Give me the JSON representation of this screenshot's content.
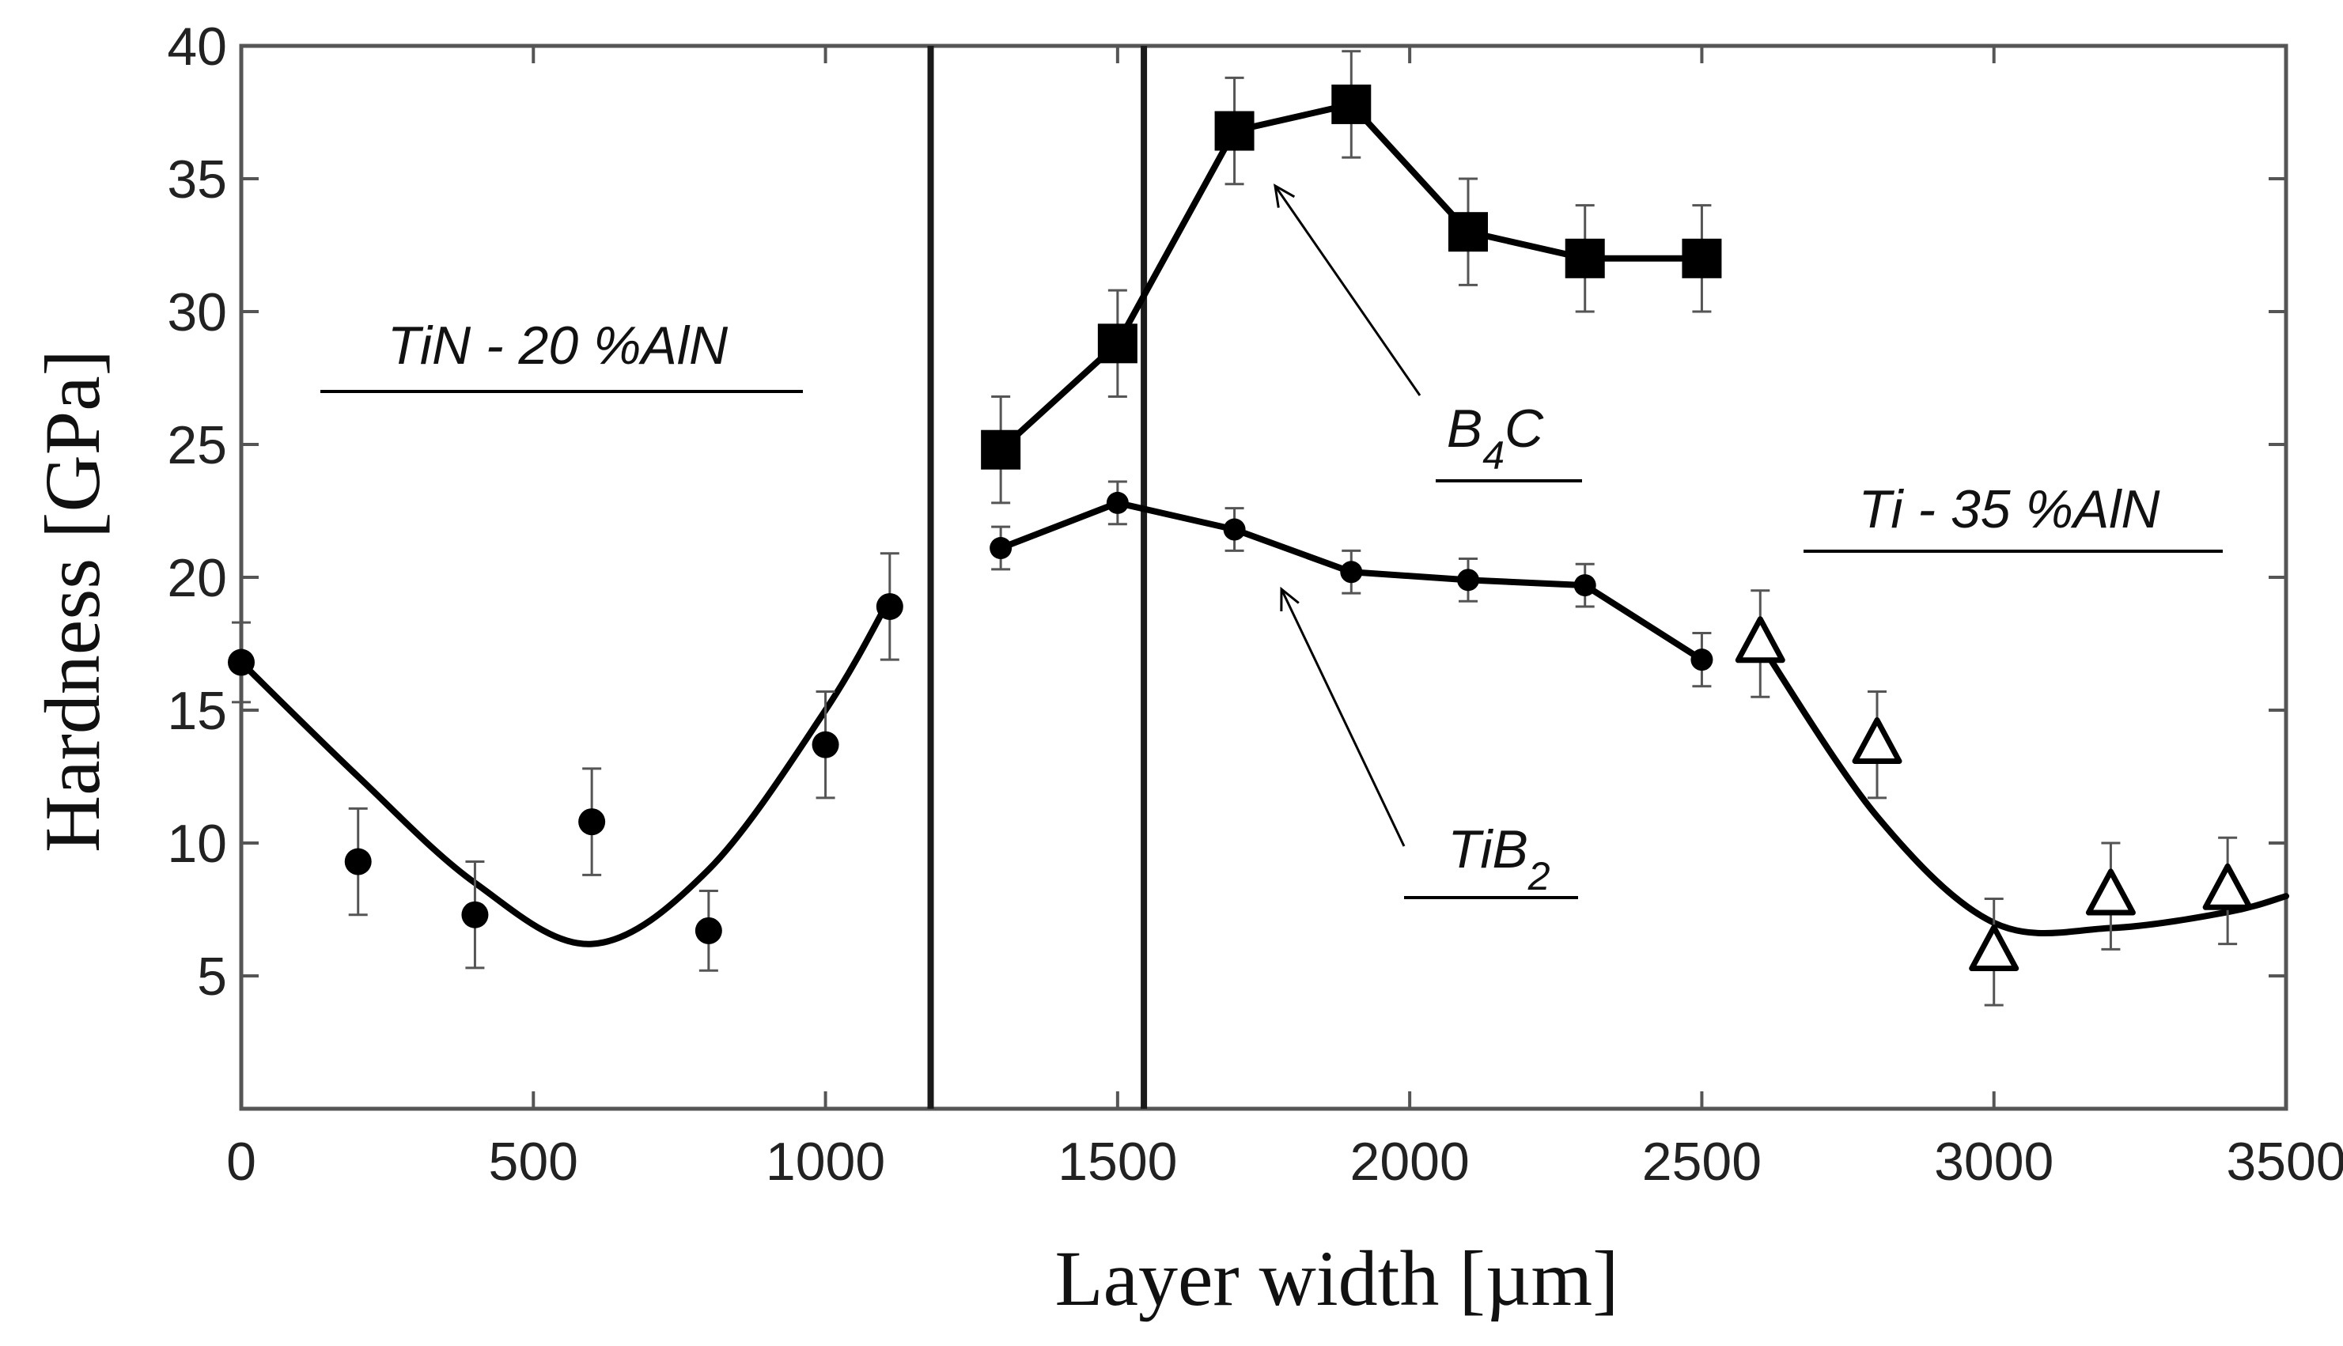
{
  "chart_data": {
    "type": "line",
    "xlabel": "Layer width [µm]",
    "ylabel": "Hardness [GPa]",
    "xlim": [
      0,
      3500
    ],
    "ylim": [
      0,
      40
    ],
    "x_ticks": [
      "0",
      "500",
      "1000",
      "1500",
      "2000",
      "2500",
      "3000",
      "3500"
    ],
    "x_tick_values": [
      0,
      500,
      1000,
      1500,
      2000,
      2500,
      3000,
      3500
    ],
    "y_ticks": [
      "5",
      "10",
      "15",
      "20",
      "25",
      "30",
      "35",
      "40"
    ],
    "y_tick_values": [
      5,
      10,
      15,
      20,
      25,
      30,
      35,
      40
    ],
    "dividers": [
      1180,
      1545
    ],
    "series": [
      {
        "name": "TiN - 20 %AlN",
        "marker": "circle",
        "fit": "smooth",
        "x": [
          0,
          200,
          400,
          600,
          800,
          1000,
          1110
        ],
        "y": [
          16.8,
          9.3,
          7.3,
          10.8,
          6.7,
          13.7,
          18.9
        ],
        "err": [
          1.5,
          2.0,
          2.0,
          2.0,
          1.5,
          2.0,
          2.0
        ]
      },
      {
        "name": "B4C",
        "label_main": "B",
        "label_sub": "4",
        "label_tail": "C",
        "marker": "square",
        "fit": "line",
        "x": [
          1300,
          1500,
          1700,
          1900,
          2100,
          2300,
          2500
        ],
        "y": [
          24.8,
          28.8,
          36.8,
          37.8,
          33.0,
          32.0,
          32.0
        ],
        "err": [
          2.0,
          2.0,
          2.0,
          2.0,
          2.0,
          2.0,
          2.0
        ]
      },
      {
        "name": "TiB2",
        "label_main": "TiB",
        "label_sub": "2",
        "label_tail": "",
        "marker": "dot",
        "fit": "line",
        "x": [
          1300,
          1500,
          1700,
          1900,
          2100,
          2300,
          2500
        ],
        "y": [
          21.1,
          22.8,
          21.8,
          20.2,
          19.9,
          19.7,
          16.9
        ],
        "err": [
          0.8,
          0.8,
          0.8,
          0.8,
          0.8,
          0.8,
          1.0
        ]
      },
      {
        "name": "Ti - 35 %AlN",
        "marker": "triangle",
        "fit": "smooth",
        "x": [
          2600,
          2800,
          3000,
          3200,
          3400
        ],
        "y": [
          17.5,
          13.7,
          5.9,
          8.0,
          8.2
        ],
        "err": [
          2.0,
          2.0,
          2.0,
          2.0,
          2.0
        ]
      }
    ],
    "fits": {
      "TiN - 20 %AlN": {
        "x": [
          0,
          200,
          400,
          600,
          800,
          1000,
          1110
        ],
        "y": [
          16.8,
          12.5,
          8.5,
          6.2,
          9.0,
          15.0,
          19.2
        ]
      },
      "Ti - 35 %AlN": {
        "x": [
          2600,
          2800,
          3000,
          3200,
          3400,
          3500
        ],
        "y": [
          17.5,
          11.0,
          7.0,
          6.8,
          7.4,
          8.0
        ]
      }
    }
  }
}
